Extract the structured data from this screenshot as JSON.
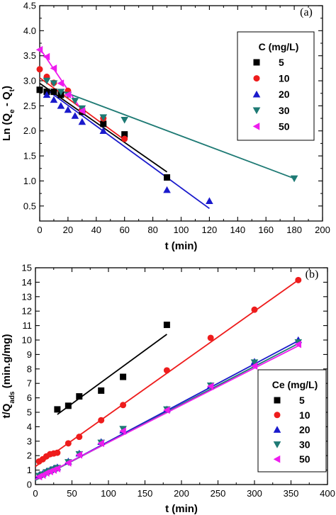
{
  "colors": {
    "s5": "#000000",
    "s10": "#ee1c1c",
    "s20": "#1a1acc",
    "s30": "#1e7a74",
    "s50": "#ee1cee"
  },
  "chart_data": [
    {
      "type": "scatter",
      "panel_label": "(a)",
      "xlabel": "t (min)",
      "ylabel": "Ln (Qe - Qt)",
      "xlim": [
        0,
        200
      ],
      "ylim": [
        0.2,
        4.5
      ],
      "xticks": [
        0,
        20,
        40,
        60,
        80,
        100,
        120,
        140,
        160,
        180,
        200
      ],
      "yticks": [
        0.5,
        1.0,
        1.5,
        2.0,
        2.5,
        3.0,
        3.5,
        4.0,
        4.5
      ],
      "legend_title": "C (mg/L)",
      "legend_position": "top-right",
      "series": [
        {
          "name": "5",
          "marker": "square",
          "color": "#000000",
          "x": [
            0,
            5,
            10,
            15,
            30,
            45,
            60,
            90
          ],
          "y": [
            2.82,
            2.78,
            2.78,
            2.72,
            2.38,
            2.14,
            1.93,
            1.07
          ],
          "fit": [
            [
              0,
              2.95
            ],
            [
              90,
              1.18
            ]
          ]
        },
        {
          "name": "10",
          "marker": "circle",
          "color": "#ee1c1c",
          "x": [
            0,
            5,
            10,
            20,
            30,
            45,
            60
          ],
          "y": [
            3.23,
            3.08,
            2.96,
            2.8,
            2.42,
            2.25,
            1.84
          ],
          "fit": [
            [
              0,
              3.06
            ],
            [
              60,
              1.82
            ]
          ]
        },
        {
          "name": "20",
          "marker": "triangle-up",
          "color": "#1a1acc",
          "x": [
            5,
            10,
            15,
            20,
            25,
            30,
            45,
            90,
            120
          ],
          "y": [
            2.72,
            2.62,
            2.5,
            2.42,
            2.3,
            2.18,
            2.0,
            0.82,
            0.6
          ],
          "fit": [
            [
              5,
              2.82
            ],
            [
              120,
              0.45
            ]
          ]
        },
        {
          "name": "30",
          "marker": "triangle-down",
          "color": "#1e7a74",
          "x": [
            5,
            10,
            15,
            20,
            25,
            30,
            45,
            60,
            180
          ],
          "y": [
            3.0,
            2.95,
            2.78,
            2.72,
            2.6,
            2.45,
            2.27,
            2.22,
            1.05
          ],
          "fit": [
            [
              15,
              2.8
            ],
            [
              180,
              1.05
            ]
          ]
        },
        {
          "name": "50",
          "marker": "triangle-left",
          "color": "#ee1cee",
          "x": [
            0,
            5,
            10,
            15,
            20,
            30
          ],
          "y": [
            3.62,
            3.48,
            3.25,
            2.95,
            2.72,
            2.4
          ],
          "fit": [
            [
              0,
              3.65
            ],
            [
              30,
              2.4
            ]
          ]
        }
      ]
    },
    {
      "type": "scatter",
      "panel_label": "(b)",
      "xlabel": "t (min)",
      "ylabel": "t/Qads (min.g/mg)",
      "xlim": [
        0,
        400
      ],
      "ylim": [
        0,
        15
      ],
      "xticks": [
        0,
        50,
        100,
        150,
        200,
        250,
        300,
        350,
        400
      ],
      "yticks": [
        0,
        1,
        2,
        3,
        4,
        5,
        6,
        7,
        8,
        9,
        10,
        11,
        12,
        13,
        14,
        15
      ],
      "legend_title": "Ce (mg/L)",
      "legend_position": "bottom-right",
      "series": [
        {
          "name": "5",
          "marker": "square",
          "color": "#000000",
          "x": [
            30,
            45,
            60,
            90,
            120,
            180
          ],
          "y": [
            5.2,
            5.45,
            6.1,
            6.5,
            7.45,
            11.05
          ],
          "fit": [
            [
              30,
              4.85
            ],
            [
              180,
              10.4
            ]
          ]
        },
        {
          "name": "10",
          "marker": "circle",
          "color": "#ee1c1c",
          "x": [
            5,
            10,
            15,
            20,
            25,
            30,
            45,
            60,
            90,
            120,
            180,
            240,
            300,
            360
          ],
          "y": [
            1.6,
            1.75,
            1.95,
            2.1,
            2.15,
            2.2,
            2.85,
            3.3,
            4.45,
            5.5,
            7.9,
            10.15,
            12.1,
            14.15
          ],
          "fit": [
            [
              0,
              1.25
            ],
            [
              360,
              14.15
            ]
          ]
        },
        {
          "name": "20",
          "marker": "triangle-up",
          "color": "#1a1acc",
          "x": [
            5,
            10,
            15,
            20,
            25,
            30,
            45,
            60,
            90,
            120,
            180,
            240,
            300,
            360
          ],
          "y": [
            0.65,
            0.75,
            0.9,
            1.0,
            1.1,
            1.2,
            1.6,
            2.15,
            2.95,
            3.75,
            5.2,
            6.85,
            8.5,
            10.0
          ],
          "fit": [
            [
              0,
              0.3
            ],
            [
              360,
              9.95
            ]
          ]
        },
        {
          "name": "30",
          "marker": "triangle-down",
          "color": "#1e7a74",
          "x": [
            5,
            10,
            15,
            20,
            25,
            30,
            45,
            60,
            90,
            120,
            180,
            240,
            300,
            360
          ],
          "y": [
            0.6,
            0.7,
            0.85,
            0.95,
            1.05,
            1.15,
            1.55,
            2.1,
            2.9,
            3.85,
            5.2,
            6.85,
            8.45,
            9.85
          ],
          "fit": [
            [
              0,
              0.3
            ],
            [
              360,
              9.75
            ]
          ]
        },
        {
          "name": "50",
          "marker": "triangle-left",
          "color": "#ee1cee",
          "x": [
            5,
            10,
            15,
            20,
            25,
            30,
            45,
            60,
            90,
            120,
            180,
            240,
            300,
            360
          ],
          "y": [
            0.55,
            0.65,
            0.8,
            0.9,
            1.0,
            1.1,
            1.5,
            2.05,
            2.85,
            3.7,
            5.15,
            6.8,
            8.2,
            9.7
          ],
          "fit": [
            [
              0,
              0.35
            ],
            [
              360,
              9.6
            ]
          ]
        }
      ]
    }
  ]
}
